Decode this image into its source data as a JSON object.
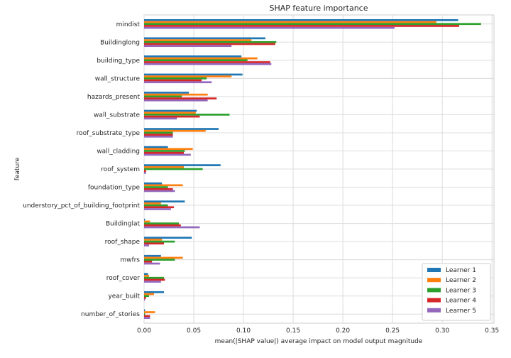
{
  "chart_data": {
    "type": "bar",
    "orientation": "horizontal",
    "title": "SHAP feature importance",
    "xlabel": "mean(|SHAP value|) average impact on model output magnitude",
    "ylabel": "feature",
    "xlim": [
      0,
      0.352
    ],
    "xticks": [
      0.0,
      0.05,
      0.1,
      0.15,
      0.2,
      0.25,
      0.3,
      0.35
    ],
    "xtick_labels": [
      "0.00",
      "0.05",
      "0.10",
      "0.15",
      "0.20",
      "0.25",
      "0.30",
      "0.35"
    ],
    "grid": true,
    "legend_position": "lower-right",
    "categories": [
      "mindist",
      "Buildinglong",
      "building_type",
      "wall_structure",
      "hazards_present",
      "wall_substrate",
      "roof_substrate_type",
      "wall_cladding",
      "roof_system",
      "foundation_type",
      "understory_pct_of_building_footprint",
      "Buildinglat",
      "roof_shape",
      "mwfrs",
      "roof_cover",
      "year_built",
      "number_of_stories"
    ],
    "series": [
      {
        "name": "Learner 1",
        "color": "#1f77b4",
        "values": [
          0.316,
          0.122,
          0.098,
          0.099,
          0.045,
          0.053,
          0.075,
          0.024,
          0.077,
          0.018,
          0.041,
          0.001,
          0.048,
          0.017,
          0.004,
          0.02,
          0.001
        ]
      },
      {
        "name": "Learner 2",
        "color": "#ff7f0e",
        "values": [
          0.294,
          0.108,
          0.114,
          0.088,
          0.064,
          0.052,
          0.062,
          0.049,
          0.04,
          0.039,
          0.017,
          0.006,
          0.018,
          0.039,
          0.005,
          0.01,
          0.011
        ]
      },
      {
        "name": "Learner 3",
        "color": "#2ca02c",
        "values": [
          0.339,
          0.133,
          0.104,
          0.063,
          0.038,
          0.086,
          0.029,
          0.041,
          0.059,
          0.024,
          0.024,
          0.035,
          0.031,
          0.031,
          0.02,
          0.005,
          0.001
        ]
      },
      {
        "name": "Learner 4",
        "color": "#d62728",
        "values": [
          0.317,
          0.132,
          0.127,
          0.058,
          0.073,
          0.056,
          0.029,
          0.04,
          0.002,
          0.029,
          0.03,
          0.037,
          0.02,
          0.008,
          0.021,
          0.002,
          0.006
        ]
      },
      {
        "name": "Learner 5",
        "color": "#9467bd",
        "values": [
          0.252,
          0.088,
          0.128,
          0.068,
          0.064,
          0.033,
          0.029,
          0.047,
          0.002,
          0.031,
          0.027,
          0.056,
          0.005,
          0.016,
          0.017,
          0.001,
          0.006
        ]
      }
    ]
  }
}
